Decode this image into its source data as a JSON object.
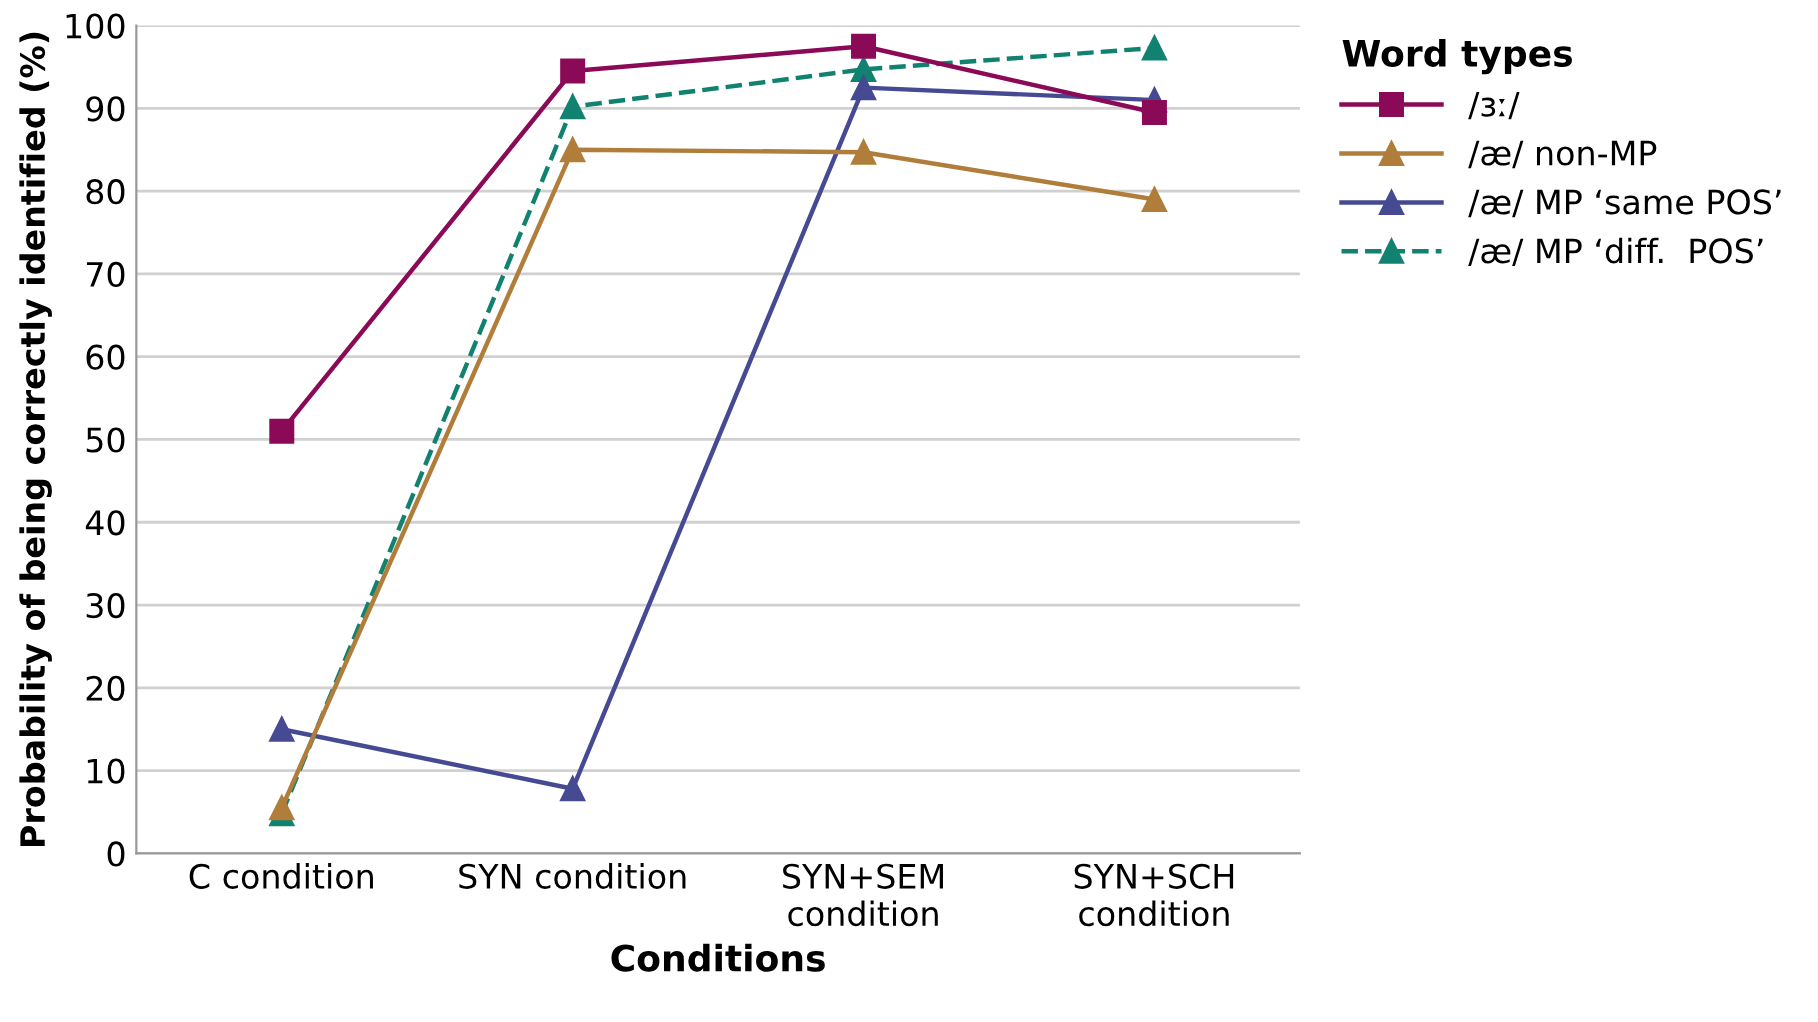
{
  "chart_data": {
    "type": "line",
    "xlabel": "Conditions",
    "ylabel": "Probability of being correctly identified (%)",
    "legend_title": "Word types",
    "categories": [
      "C condition",
      "SYN condition",
      "SYN+SEM\ncondition",
      "SYN+SCH\ncondition"
    ],
    "series": [
      {
        "name": "/ɜː/",
        "color": "#8b0a57",
        "marker": "square",
        "line_style": "solid",
        "values": [
          51,
          94.5,
          97.5,
          89.5
        ]
      },
      {
        "name": "/æ/ non-MP",
        "color": "#b07d3a",
        "marker": "triangle",
        "line_style": "solid",
        "values": [
          5.5,
          85,
          84.7,
          79
        ]
      },
      {
        "name": "/æ/ MP ‘same POS’",
        "color": "#464a92",
        "marker": "triangle",
        "line_style": "solid",
        "values": [
          15,
          7.8,
          92.5,
          91
        ]
      },
      {
        "name": "/æ/ MP ‘diff.  POS’",
        "color": "#128270",
        "marker": "triangle",
        "line_style": "dashed",
        "values": [
          4.8,
          90.2,
          94.7,
          97.3
        ]
      }
    ],
    "ylim": [
      0,
      100
    ],
    "yticks": [
      0,
      10,
      20,
      30,
      40,
      50,
      60,
      70,
      80,
      90,
      100
    ],
    "grid": "y",
    "legend": "top right"
  }
}
